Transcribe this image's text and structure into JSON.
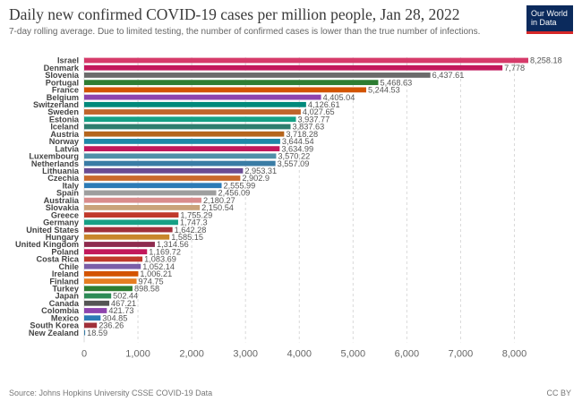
{
  "chart_data": {
    "type": "bar",
    "orientation": "horizontal",
    "title": "Daily new confirmed COVID-19 cases per million people, Jan 28, 2022",
    "subtitle": "7-day rolling average. Due to limited testing, the number of confirmed cases is lower than the true number of infections.",
    "source": "Source: Johns Hopkins University CSSE COVID-19 Data",
    "license": "CC BY",
    "logo_line1": "Our World",
    "logo_line2": "in Data",
    "xlim": [
      0,
      8258.18
    ],
    "xticks": [
      0,
      1000,
      2000,
      3000,
      4000,
      5000,
      6000,
      7000,
      8000
    ],
    "xtick_labels": [
      "0",
      "1,000",
      "2,000",
      "3,000",
      "4,000",
      "5,000",
      "6,000",
      "7,000",
      "8,000"
    ],
    "grid": "vertical dashed",
    "categories": [
      "Israel",
      "Denmark",
      "Slovenia",
      "Portugal",
      "France",
      "Belgium",
      "Switzerland",
      "Sweden",
      "Estonia",
      "Iceland",
      "Austria",
      "Norway",
      "Latvia",
      "Luxembourg",
      "Netherlands",
      "Lithuania",
      "Czechia",
      "Italy",
      "Spain",
      "Australia",
      "Slovakia",
      "Greece",
      "Germany",
      "United States",
      "Hungary",
      "United Kingdom",
      "Poland",
      "Costa Rica",
      "Chile",
      "Ireland",
      "Finland",
      "Turkey",
      "Japan",
      "Canada",
      "Colombia",
      "Mexico",
      "South Korea",
      "New Zealand"
    ],
    "values": [
      8258.18,
      7778,
      6437.61,
      5468.63,
      5244.53,
      4405.04,
      4126.61,
      4027.65,
      3937.77,
      3837.63,
      3718.28,
      3644.54,
      3634.99,
      3570.22,
      3557.09,
      2953.31,
      2902.9,
      2555.99,
      2456.09,
      2180.27,
      2150.54,
      1755.29,
      1747.3,
      1642.28,
      1585.15,
      1314.56,
      1169.72,
      1083.69,
      1052.14,
      1006.21,
      974.75,
      898.58,
      502.44,
      467.21,
      421.73,
      304.85,
      236.26,
      18.59
    ],
    "value_labels": [
      "8,258.18",
      "7,778",
      "6,437.61",
      "5,468.63",
      "5,244.53",
      "4,405.04",
      "4,126.61",
      "4,027.65",
      "3,937.77",
      "3,837.63",
      "3,718.28",
      "3,644.54",
      "3,634.99",
      "3,570.22",
      "3,557.09",
      "2,953.31",
      "2,902.9",
      "2,555.99",
      "2,456.09",
      "2,180.27",
      "2,150.54",
      "1,755.29",
      "1,747.3",
      "1,642.28",
      "1,585.15",
      "1,314.56",
      "1,169.72",
      "1,083.69",
      "1,052.14",
      "1,006.21",
      "974.75",
      "898.58",
      "502.44",
      "467.21",
      "421.73",
      "304.85",
      "236.26",
      "18.59"
    ],
    "colors": [
      "#d63a6a",
      "#c2185b",
      "#6b6b6b",
      "#2e7d32",
      "#d35400",
      "#8e44ad",
      "#00897b",
      "#c0642b",
      "#16a085",
      "#2e7d6e",
      "#b5651d",
      "#1e88a8",
      "#c2185b",
      "#4f8fa8",
      "#3a7ca5",
      "#6a4c93",
      "#c96a2d",
      "#2c7bb6",
      "#9e9e9e",
      "#d98c8c",
      "#c9a27a",
      "#c0392b",
      "#16a085",
      "#a0303a",
      "#c8862b",
      "#8e2b4e",
      "#c2185b",
      "#c0392b",
      "#7b5ea7",
      "#d35400",
      "#e67e22",
      "#2e7d32",
      "#2e8b57",
      "#555555",
      "#8e44ad",
      "#2c7bb6",
      "#a0303a",
      "#3a7ca5"
    ]
  }
}
